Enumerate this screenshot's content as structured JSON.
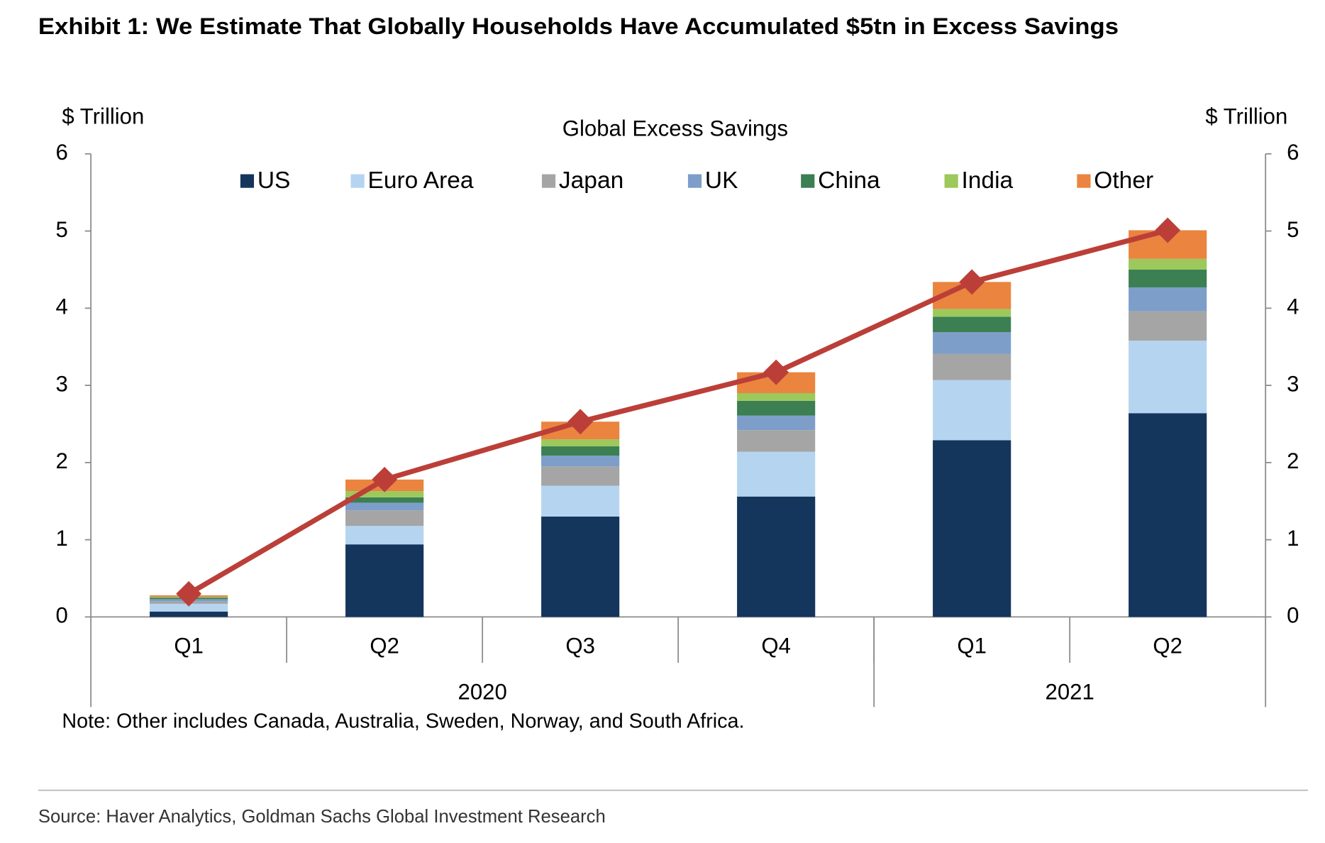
{
  "chart_data": {
    "type": "stacked-bar-line",
    "title": "Exhibit 1: We Estimate That Globally Households Have Accumulated $5tn in Excess Savings",
    "subtitle": "Global Excess Savings",
    "y_label": "$ Trillion",
    "y2_label": "$ Trillion",
    "categories": [
      "Q1",
      "Q2",
      "Q3",
      "Q4",
      "Q1",
      "Q2"
    ],
    "groups": [
      {
        "label": "2020",
        "span": 4
      },
      {
        "label": "2021",
        "span": 2
      }
    ],
    "series": [
      {
        "name": "US",
        "color": "#14355c",
        "values": [
          0.07,
          0.94,
          1.3,
          1.56,
          2.29,
          2.64
        ]
      },
      {
        "name": "Euro Area",
        "color": "#b5d4ef",
        "values": [
          0.1,
          0.24,
          0.4,
          0.58,
          0.78,
          0.94
        ]
      },
      {
        "name": "Japan",
        "color": "#a5a5a5",
        "values": [
          0.03,
          0.2,
          0.25,
          0.28,
          0.34,
          0.38
        ]
      },
      {
        "name": "UK",
        "color": "#7d9ec9",
        "values": [
          0.03,
          0.1,
          0.14,
          0.19,
          0.28,
          0.31
        ]
      },
      {
        "name": "China",
        "color": "#3b7f52",
        "values": [
          0.02,
          0.07,
          0.12,
          0.19,
          0.2,
          0.23
        ]
      },
      {
        "name": "India",
        "color": "#9dc85c",
        "values": [
          0.01,
          0.08,
          0.09,
          0.1,
          0.1,
          0.14
        ]
      },
      {
        "name": "Other",
        "color": "#ea843f",
        "values": [
          0.02,
          0.15,
          0.23,
          0.27,
          0.35,
          0.37
        ]
      }
    ],
    "total": {
      "color": "#bb3f38",
      "values": [
        0.3,
        1.78,
        2.53,
        3.17,
        4.34,
        5.01
      ]
    },
    "ylim": [
      0,
      6
    ],
    "yticks": [
      0,
      1,
      2,
      3,
      4,
      5,
      6
    ],
    "y2lim": [
      0,
      6
    ],
    "y2ticks": [
      0,
      1,
      2,
      3,
      4,
      5,
      6
    ],
    "grid": false,
    "legend": "top",
    "note": "Note: Other includes Canada, Australia, Sweden, Norway, and South Africa.",
    "source": "Source: Haver Analytics, Goldman Sachs Global Investment Research"
  }
}
